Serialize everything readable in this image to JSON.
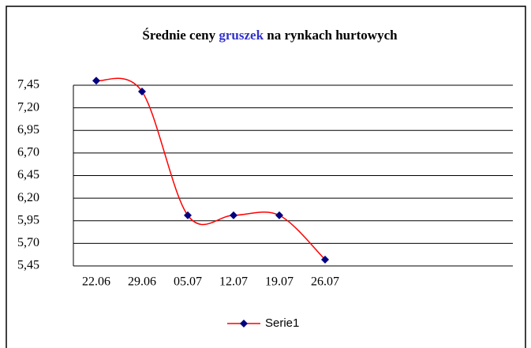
{
  "chart_data": {
    "type": "line",
    "title": [
      "Średnie ceny",
      "gruszek",
      "na rynkach hurtowych"
    ],
    "title_highlight_color": "#3333cc",
    "categories": [
      "22.06",
      "29.06",
      "05.07",
      "12.07",
      "19.07",
      "26.07"
    ],
    "series": [
      {
        "name": "Serie1",
        "color": "#ff0000",
        "marker_color": "#000080",
        "values": [
          7.5,
          7.38,
          6.01,
          6.01,
          6.01,
          5.52
        ]
      }
    ],
    "ylim": [
      5.45,
      7.45
    ],
    "yticks": [
      {
        "value": 5.45,
        "label": "5,45"
      },
      {
        "value": 5.7,
        "label": "5,70"
      },
      {
        "value": 5.95,
        "label": "5,95"
      },
      {
        "value": 6.2,
        "label": "6,20"
      },
      {
        "value": 6.45,
        "label": "6,45"
      },
      {
        "value": 6.7,
        "label": "6,70"
      },
      {
        "value": 6.95,
        "label": "6,95"
      },
      {
        "value": 7.2,
        "label": "7,20"
      },
      {
        "value": 7.45,
        "label": "7,45"
      }
    ],
    "grid": true,
    "smooth": true,
    "legend": "bottom"
  }
}
